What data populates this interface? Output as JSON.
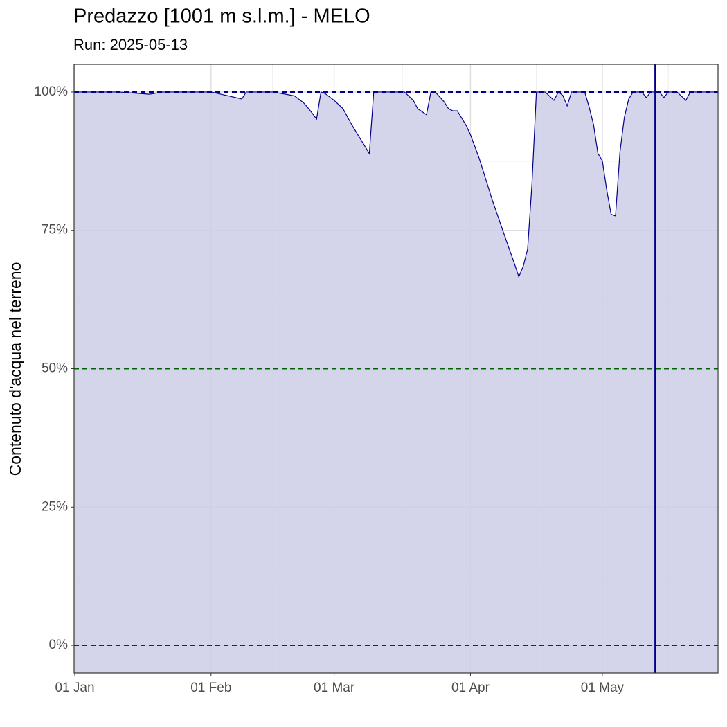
{
  "chart_data": {
    "type": "area",
    "title": "Predazzo [1001 m s.l.m.] - MELO",
    "subtitle": "Run: 2025-05-13",
    "ylabel": "Contenuto d'acqua nel terreno",
    "x": [
      "01-01",
      "01-11",
      "01-18",
      "01-21",
      "02-01",
      "02-05",
      "02-08",
      "02-09",
      "02-15",
      "02-18",
      "02-20",
      "02-22",
      "02-23",
      "02-24",
      "02-25",
      "02-26",
      "02-27",
      "03-01",
      "03-03",
      "03-05",
      "03-07",
      "03-09",
      "03-10",
      "03-17",
      "03-19",
      "03-20",
      "03-22",
      "03-23",
      "03-24",
      "03-26",
      "03-27",
      "03-28",
      "03-29",
      "03-31",
      "04-01",
      "04-03",
      "04-06",
      "04-09",
      "04-11",
      "04-12",
      "04-13",
      "04-14",
      "04-15",
      "04-16",
      "04-18",
      "04-20",
      "04-21",
      "04-22",
      "04-23",
      "04-24",
      "04-27",
      "04-28",
      "04-29",
      "04-30",
      "05-01",
      "05-02",
      "05-03",
      "05-04",
      "05-05",
      "05-06",
      "05-07",
      "05-08",
      "05-10",
      "05-11",
      "05-12",
      "05-14",
      "05-15",
      "05-16",
      "05-18",
      "05-20",
      "05-21",
      "05-27"
    ],
    "series": [
      {
        "color": "#00008b",
        "fill": "#cccce8",
        "values": [
          100,
          100,
          99.6,
          100,
          100,
          99.3,
          98.75,
          100,
          100,
          99.6,
          99.3,
          98.1,
          97.2,
          96.2,
          95.1,
          100,
          99.7,
          98.5,
          97,
          94.1,
          91.5,
          88.9,
          100,
          100,
          98.5,
          97,
          95.9,
          100,
          100,
          98.25,
          97,
          96.6,
          96.6,
          94,
          92.3,
          88,
          80.4,
          73.5,
          69,
          66.6,
          68.5,
          71.6,
          83.5,
          100,
          100,
          98.5,
          100,
          99.4,
          97.5,
          100,
          100,
          97.3,
          94.1,
          88.9,
          87.6,
          82.3,
          77.9,
          77.6,
          89.1,
          95.4,
          98.75,
          100,
          100,
          99,
          100,
          100,
          99,
          100,
          100,
          98.5,
          100,
          100
        ]
      }
    ],
    "xlim": [
      "01-01",
      "05-27"
    ],
    "xticks": [
      {
        "value": "01-01",
        "label": "01 Jan"
      },
      {
        "value": "02-01",
        "label": "01 Feb"
      },
      {
        "value": "03-01",
        "label": "01 Mar"
      },
      {
        "value": "04-01",
        "label": "01 Apr"
      },
      {
        "value": "05-01",
        "label": "01 May"
      }
    ],
    "ylim": [
      -5,
      105
    ],
    "yticks": [
      {
        "value": 0,
        "label": "0%"
      },
      {
        "value": 25,
        "label": "25%"
      },
      {
        "value": 50,
        "label": "50%"
      },
      {
        "value": 75,
        "label": "75%"
      },
      {
        "value": 100,
        "label": "100%"
      }
    ],
    "hlines": [
      {
        "value": 100,
        "color": "#00008b"
      },
      {
        "value": 50,
        "color": "#006400"
      },
      {
        "value": 0,
        "color": "#8b0000"
      }
    ],
    "vline": {
      "x": "05-13",
      "color": "#00008b"
    },
    "grid": true
  }
}
